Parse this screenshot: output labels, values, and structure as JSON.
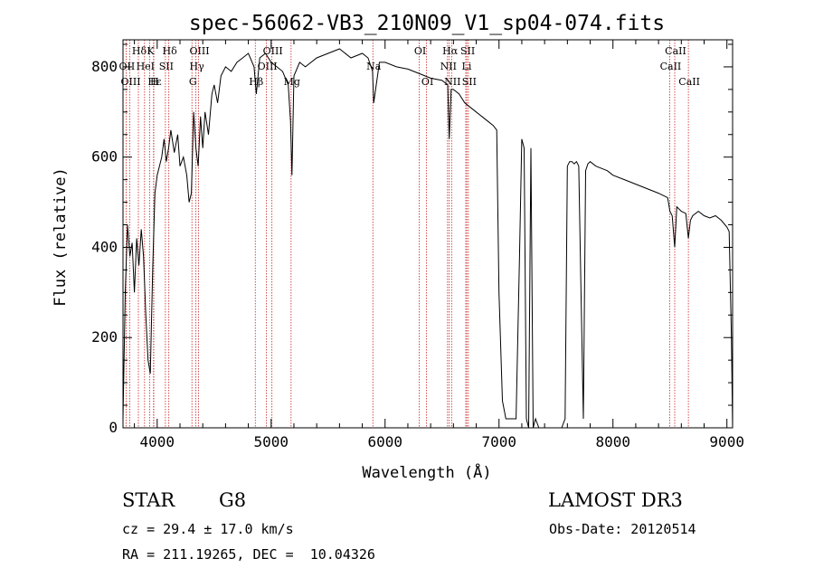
{
  "chart_data": {
    "type": "line",
    "title": "spec-56062-VB3_210N09_V1_sp04-074.fits",
    "xlabel": "Wavelength (Å)",
    "ylabel": "Flux (relative)",
    "xlim": [
      3700,
      9050
    ],
    "ylim": [
      0,
      860
    ],
    "xticks": [
      4000,
      5000,
      6000,
      7000,
      8000,
      9000
    ],
    "yticks": [
      0,
      200,
      400,
      600,
      800
    ],
    "series": [
      {
        "name": "flux",
        "x": [
          3700,
          3720,
          3740,
          3760,
          3780,
          3800,
          3820,
          3840,
          3860,
          3880,
          3900,
          3920,
          3940,
          3960,
          3980,
          4000,
          4020,
          4040,
          4060,
          4080,
          4100,
          4120,
          4150,
          4180,
          4200,
          4230,
          4260,
          4280,
          4300,
          4320,
          4340,
          4360,
          4380,
          4400,
          4420,
          4450,
          4480,
          4500,
          4530,
          4560,
          4600,
          4650,
          4700,
          4750,
          4800,
          4850,
          4870,
          4900,
          4950,
          5000,
          5050,
          5100,
          5150,
          5170,
          5183,
          5200,
          5250,
          5300,
          5400,
          5500,
          5600,
          5700,
          5800,
          5850,
          5890,
          5900,
          5950,
          6000,
          6100,
          6200,
          6300,
          6400,
          6500,
          6550,
          6563,
          6580,
          6600,
          6650,
          6700,
          6750,
          6800,
          6850,
          6900,
          6950,
          6980,
          7000,
          7030,
          7060,
          7100,
          7150,
          7180,
          7200,
          7220,
          7240,
          7260,
          7280,
          7300,
          7320,
          7350,
          7400,
          7450,
          7500,
          7550,
          7580,
          7600,
          7620,
          7640,
          7660,
          7680,
          7700,
          7720,
          7740,
          7760,
          7780,
          7800,
          7850,
          7900,
          7950,
          8000,
          8100,
          8200,
          8300,
          8400,
          8480,
          8500,
          8520,
          8542,
          8560,
          8600,
          8640,
          8662,
          8680,
          8700,
          8750,
          8800,
          8850,
          8900,
          8950,
          9000,
          9020,
          9040,
          9050
        ],
        "values": [
          20,
          300,
          450,
          380,
          410,
          300,
          420,
          360,
          440,
          380,
          250,
          150,
          120,
          350,
          520,
          560,
          580,
          600,
          640,
          590,
          620,
          660,
          610,
          650,
          580,
          600,
          560,
          500,
          520,
          700,
          620,
          580,
          690,
          620,
          700,
          650,
          740,
          760,
          720,
          780,
          800,
          790,
          810,
          820,
          830,
          800,
          740,
          820,
          830,
          810,
          800,
          790,
          760,
          680,
          560,
          780,
          810,
          800,
          820,
          830,
          840,
          820,
          830,
          820,
          790,
          720,
          810,
          810,
          800,
          795,
          785,
          775,
          770,
          760,
          640,
          750,
          750,
          740,
          720,
          710,
          700,
          690,
          680,
          670,
          660,
          300,
          60,
          20,
          20,
          20,
          380,
          640,
          620,
          20,
          0,
          620,
          0,
          20,
          0,
          0,
          0,
          0,
          0,
          20,
          580,
          590,
          590,
          585,
          590,
          580,
          300,
          20,
          570,
          585,
          590,
          580,
          575,
          570,
          560,
          550,
          540,
          530,
          520,
          510,
          480,
          470,
          400,
          490,
          480,
          475,
          420,
          460,
          470,
          480,
          470,
          465,
          470,
          460,
          445,
          435,
          200,
          0
        ]
      }
    ],
    "lines": [
      {
        "label": "Hδ",
        "wl": 3835,
        "row": 1
      },
      {
        "label": "K",
        "wl": 3934,
        "row": 1
      },
      {
        "label": "Hδ",
        "wl": 4102,
        "row": 1
      },
      {
        "label": "OIII",
        "wl": 4363,
        "row": 1
      },
      {
        "label": "OIII",
        "wl": 5007,
        "row": 1
      },
      {
        "label": "OI",
        "wl": 6300,
        "row": 1
      },
      {
        "label": "Hα",
        "wl": 6563,
        "row": 1
      },
      {
        "label": "SII",
        "wl": 6717,
        "row": 1
      },
      {
        "label": "CaII",
        "wl": 8542,
        "row": 1
      },
      {
        "label": "OII",
        "wl": 3727,
        "row": 2
      },
      {
        "label": "HeI",
        "wl": 3889,
        "row": 2
      },
      {
        "label": "SII",
        "wl": 4072,
        "row": 2
      },
      {
        "label": "Hγ",
        "wl": 4340,
        "row": 2
      },
      {
        "label": "OIII",
        "wl": 4959,
        "row": 2
      },
      {
        "label": "Na",
        "wl": 5893,
        "row": 2
      },
      {
        "label": "NII",
        "wl": 6548,
        "row": 2
      },
      {
        "label": "Li",
        "wl": 6708,
        "row": 2
      },
      {
        "label": "CaII",
        "wl": 8498,
        "row": 2
      },
      {
        "label": "OIII",
        "wl": 3760,
        "row": 3
      },
      {
        "label": "Hε",
        "wl": 3970,
        "row": 3
      },
      {
        "label": "H",
        "wl": 3968,
        "row": 3
      },
      {
        "label": "G",
        "wl": 4305,
        "row": 3
      },
      {
        "label": "Hβ",
        "wl": 4861,
        "row": 3
      },
      {
        "label": "Mg",
        "wl": 5175,
        "row": 3
      },
      {
        "label": "OI",
        "wl": 6364,
        "row": 3
      },
      {
        "label": "NII",
        "wl": 6584,
        "row": 3
      },
      {
        "label": "SII",
        "wl": 6731,
        "row": 3
      },
      {
        "label": "CaII",
        "wl": 8662,
        "row": 3
      }
    ],
    "line_color": "#cc2222"
  },
  "info": {
    "class": "STAR",
    "subclass": "G8",
    "survey": "LAMOST DR3",
    "cz": "cz = 29.4 ± 17.0 km/s",
    "obs_date": "Obs-Date: 20120514",
    "coords": "RA = 211.19265, DEC =  10.04326"
  }
}
